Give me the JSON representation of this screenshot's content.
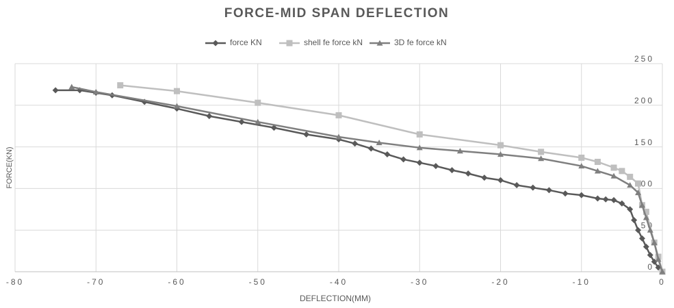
{
  "chart_data": {
    "type": "line",
    "title": "FORCE-MID SPAN DEFLECTION",
    "x_label": "DEFLECTION(MM)",
    "y_label": "FORCE(KN)",
    "xlim": [
      -80,
      0
    ],
    "xticks": [
      -80,
      -70,
      -60,
      -50,
      -40,
      -30,
      -20,
      -10,
      0
    ],
    "ylim": [
      0,
      250
    ],
    "yticks": [
      0,
      50,
      100,
      150,
      200,
      250
    ],
    "grid": true,
    "y_axis_side": "right",
    "legend": "top",
    "series": [
      {
        "name": "force KN",
        "color": "#595959",
        "marker": "diamond",
        "x": [
          -75,
          -72,
          -70,
          -68,
          -64,
          -60,
          -56,
          -52,
          -48,
          -44,
          -40,
          -38,
          -36,
          -34,
          -32,
          -30,
          -28,
          -26,
          -24,
          -22,
          -20,
          -18,
          -16,
          -14,
          -12,
          -10,
          -8,
          -7,
          -6,
          -5,
          -4,
          -3.5,
          -3,
          -2.5,
          -2,
          -1.5,
          -1,
          -0.5,
          0
        ],
        "values": [
          218,
          218,
          215,
          212,
          204,
          196,
          187,
          180,
          173,
          165,
          159,
          154,
          148,
          141,
          135,
          131,
          127,
          122,
          118,
          113,
          110,
          104,
          101,
          98,
          94,
          92,
          88,
          87,
          86,
          82,
          75,
          62,
          50,
          40,
          30,
          20,
          12,
          5,
          0
        ]
      },
      {
        "name": "shell fe force kN",
        "color": "#bfbfbf",
        "marker": "square",
        "x": [
          -67,
          -60,
          -50,
          -40,
          -30,
          -20,
          -15,
          -10,
          -8,
          -6,
          -5,
          -4,
          -3,
          -2.5,
          -2,
          -1,
          -0.5,
          0
        ],
        "values": [
          224,
          217,
          203,
          188,
          165,
          152,
          144,
          137,
          132,
          125,
          121,
          114,
          106,
          80,
          72,
          35,
          18,
          0
        ]
      },
      {
        "name": "3D fe force kN",
        "color": "#7f7f7f",
        "marker": "triangle",
        "x": [
          -73,
          -70,
          -60,
          -50,
          -40,
          -35,
          -30,
          -25,
          -20,
          -15,
          -10,
          -8,
          -6,
          -4,
          -3,
          -2.5,
          -2,
          -1.5,
          -1,
          -0.5,
          0
        ],
        "values": [
          222,
          216,
          199,
          180,
          162,
          155,
          149,
          145,
          141,
          136,
          127,
          121,
          115,
          104,
          95,
          80,
          65,
          50,
          35,
          15,
          0
        ]
      }
    ]
  }
}
